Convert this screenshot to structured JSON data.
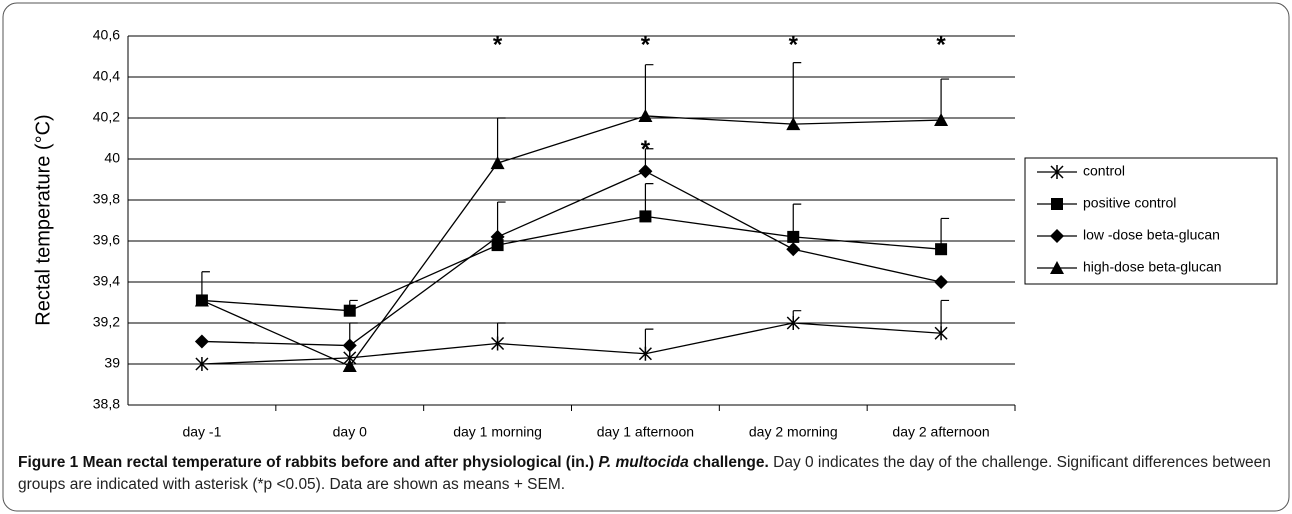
{
  "chart_data": {
    "type": "line",
    "y_label": "Rectal temperature (°C)",
    "categories": [
      "day -1",
      "day 0",
      "day 1 morning",
      "day 1 afternoon",
      "day 2 morning",
      "day 2 afternoon"
    ],
    "ylim": [
      38.8,
      40.6
    ],
    "yticks": [
      {
        "value": 38.8,
        "label": "38,8"
      },
      39,
      {
        "value": 39.2,
        "label": "39,2"
      },
      {
        "value": 39.4,
        "label": "39,4"
      },
      {
        "value": 39.6,
        "label": "39,6"
      },
      {
        "value": 39.8,
        "label": "39,8"
      },
      40,
      {
        "value": 40.2,
        "label": "40,2"
      },
      {
        "value": 40.4,
        "label": "40,4"
      },
      {
        "value": 40.6,
        "label": "40,6"
      }
    ],
    "grid": true,
    "legend": "right",
    "series": [
      {
        "name": "control",
        "color": "#000000",
        "marker": "star",
        "values": [
          39.0,
          39.03,
          39.1,
          39.05,
          39.2,
          39.15
        ],
        "errors": [
          null,
          null,
          0.1,
          0.12,
          0.06,
          0.16
        ]
      },
      {
        "name": "positive control",
        "color": "#000000",
        "marker": "square",
        "values": [
          39.31,
          39.26,
          39.58,
          39.72,
          39.62,
          39.56
        ],
        "errors": [
          0.14,
          0.05,
          null,
          0.16,
          0.16,
          0.15
        ]
      },
      {
        "name": "low -dose beta-glucan",
        "color": "#000000",
        "marker": "diamond",
        "values": [
          39.11,
          39.09,
          39.62,
          39.94,
          39.56,
          39.4
        ],
        "errors": [
          null,
          0.11,
          0.17,
          0.11,
          null,
          null
        ]
      },
      {
        "name": "high-dose beta-glucan",
        "color": "#000000",
        "marker": "triangle",
        "values": [
          39.31,
          38.99,
          39.98,
          40.21,
          40.17,
          40.19
        ],
        "errors": [
          null,
          null,
          0.22,
          0.25,
          0.3,
          0.2
        ]
      }
    ],
    "annotations": [
      {
        "text": "*",
        "category": 2,
        "y": 40.55
      },
      {
        "text": "*",
        "category": 3,
        "y": 40.55
      },
      {
        "text": "*",
        "category": 3,
        "y": 40.04
      },
      {
        "text": "*",
        "category": 4,
        "y": 40.55
      },
      {
        "text": "*",
        "category": 5,
        "y": 40.55
      }
    ]
  },
  "caption": {
    "label": "Figure 1",
    "title": "Mean rectal temperature of rabbits before and after physiological (in.)",
    "organism": "P. multocida",
    "title_end": "challenge.",
    "text": "Day 0 indicates the day of the challenge. Significant differences between groups are indicated with asterisk (*p <0.05). Data are shown as means + SEM."
  }
}
